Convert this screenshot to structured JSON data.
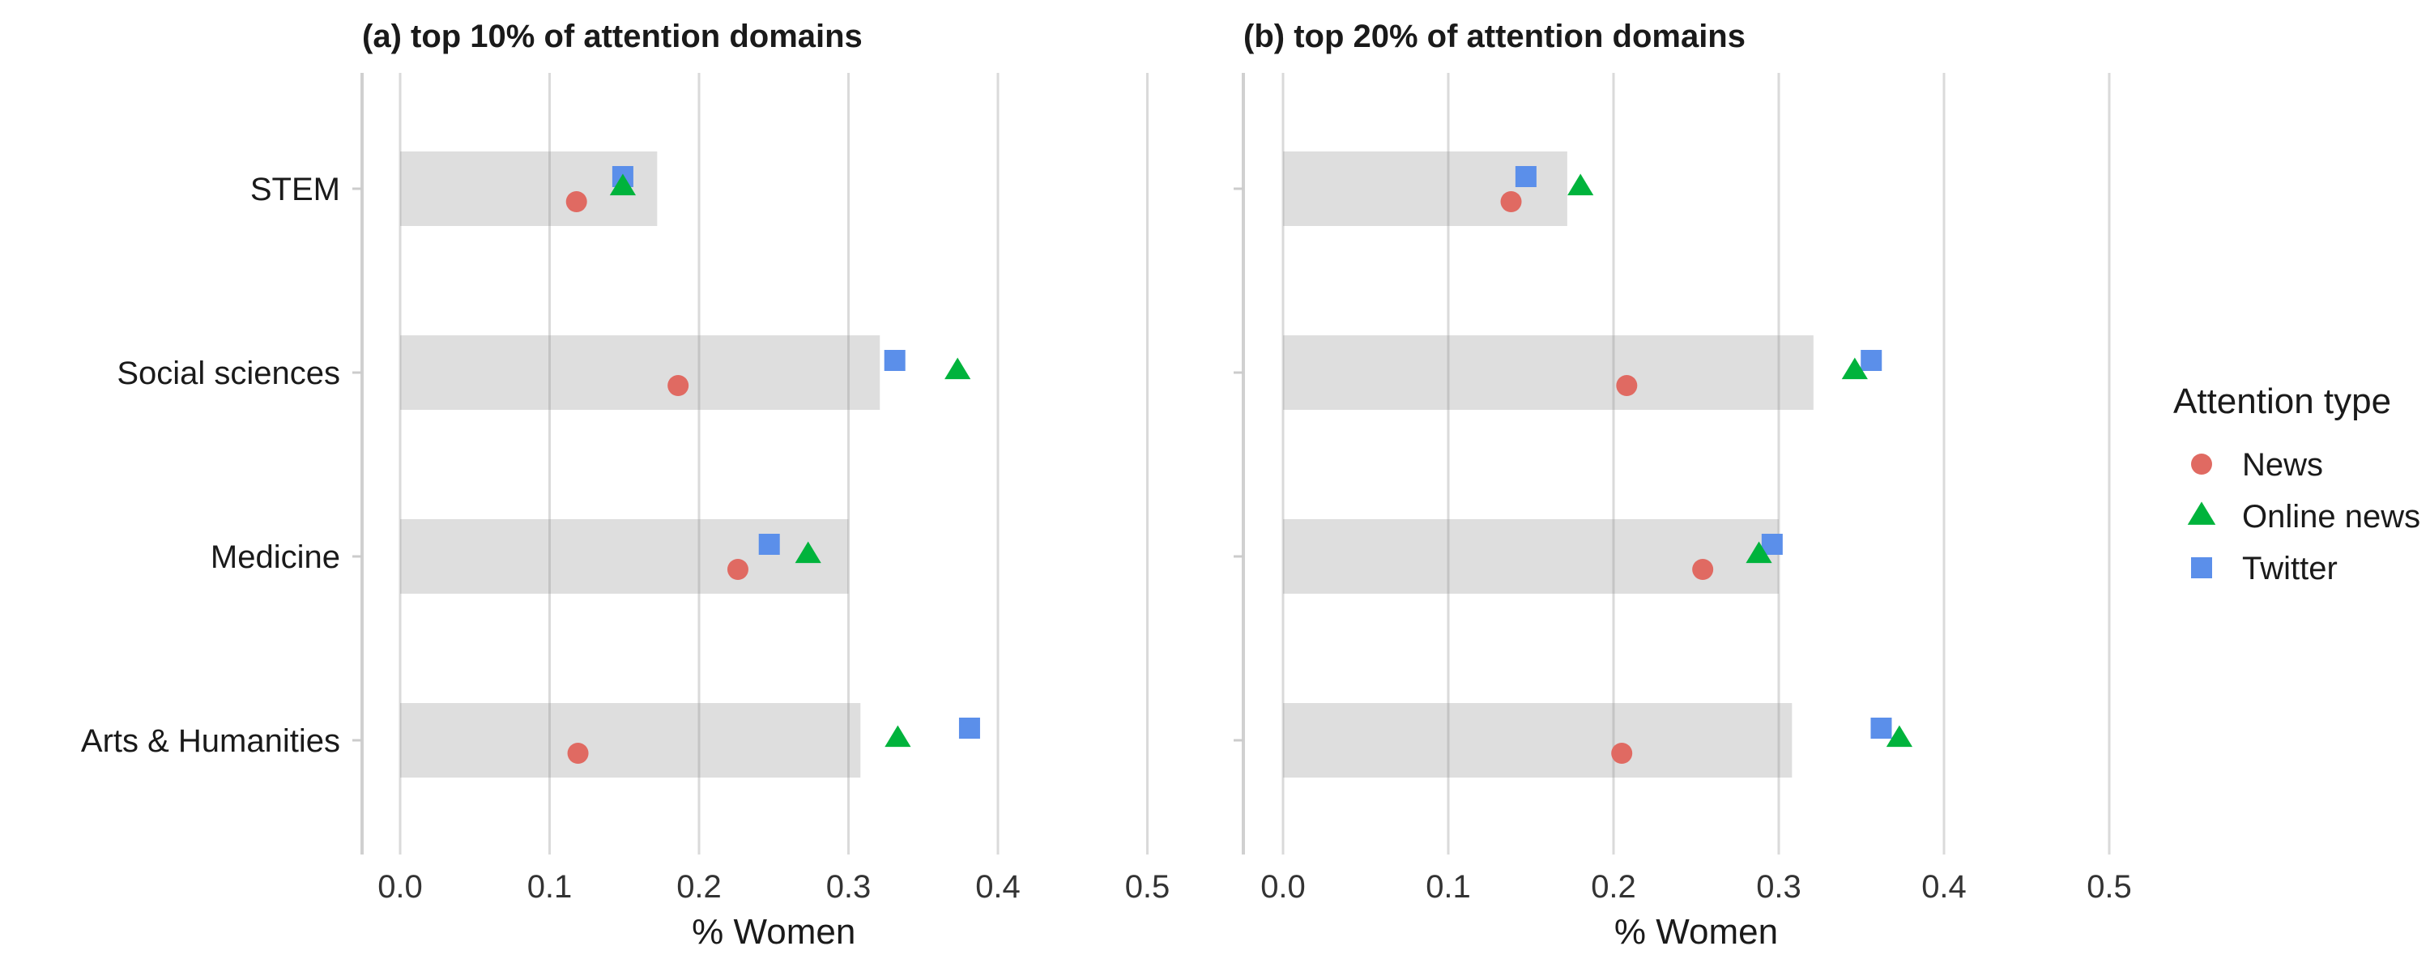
{
  "chart_data": {
    "type": "scatter",
    "xlim": [
      0,
      0.5
    ],
    "x_ticks": [
      "0.0",
      "0.1",
      "0.2",
      "0.3",
      "0.4",
      "0.5"
    ],
    "xlabel": "% Women",
    "categories": [
      "STEM",
      "Social sciences",
      "Medicine",
      "Arts & Humanities"
    ],
    "legend": {
      "title": "Attention type",
      "position": "right",
      "entries": [
        {
          "name": "News",
          "shape": "circle",
          "color": "#E06A62"
        },
        {
          "name": "Online news",
          "shape": "triangle",
          "color": "#00B33C"
        },
        {
          "name": "Twitter",
          "shape": "square",
          "color": "#5B8FEA"
        }
      ]
    },
    "grid": true,
    "panels": [
      {
        "title": "(a) top 10% of attention domains",
        "bar_values": [
          0.172,
          0.321,
          0.3,
          0.308
        ],
        "series": [
          {
            "name": "News",
            "values": [
              0.118,
              0.186,
              0.226,
              0.119
            ]
          },
          {
            "name": "Online news",
            "values": [
              0.149,
              0.373,
              0.273,
              0.333
            ]
          },
          {
            "name": "Twitter",
            "values": [
              0.149,
              0.331,
              0.247,
              0.381
            ]
          }
        ]
      },
      {
        "title": "(b) top 20% of attention domains",
        "bar_values": [
          0.172,
          0.321,
          0.3,
          0.308
        ],
        "series": [
          {
            "name": "News",
            "values": [
              0.138,
              0.208,
              0.254,
              0.205
            ]
          },
          {
            "name": "Online news",
            "values": [
              0.18,
              0.346,
              0.288,
              0.373
            ]
          },
          {
            "name": "Twitter",
            "values": [
              0.147,
              0.356,
              0.296,
              0.362
            ]
          }
        ]
      }
    ]
  }
}
